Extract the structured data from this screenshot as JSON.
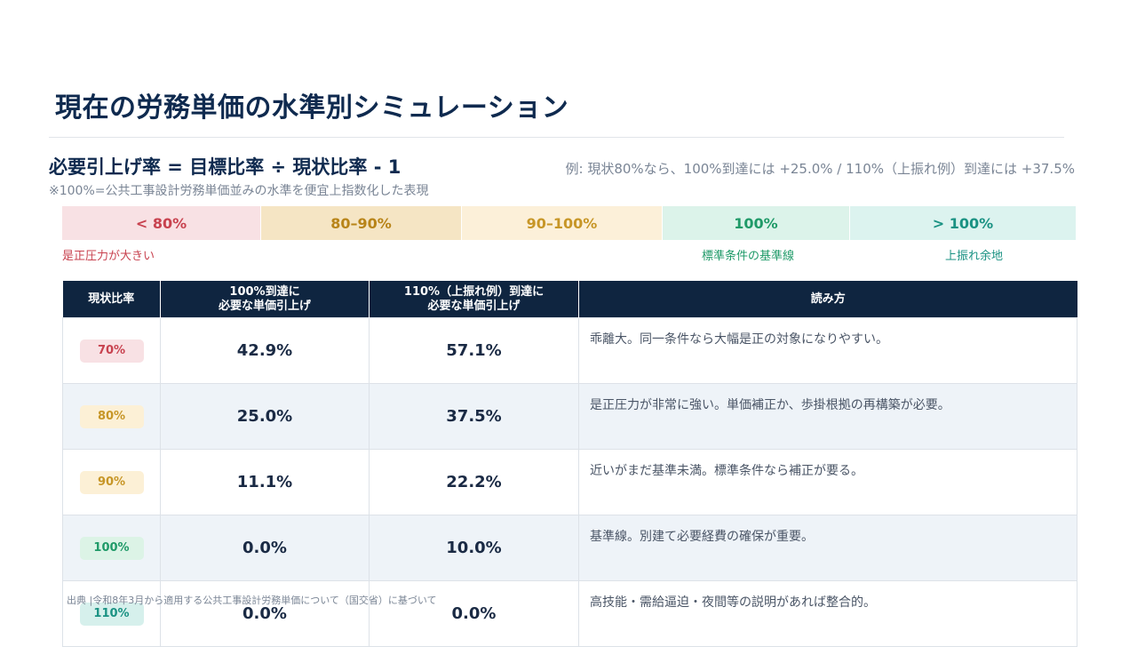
{
  "title": "現在の労務単価の水準別シミュレーション",
  "formula": "必要引上げ率 = 目標比率 ÷ 現状比率 - 1",
  "example": "例: 現状80%なら、100%到達には +25.0% / 110%（上振れ例）到達には +37.5%",
  "note": "※100%=公共工事設計労務単価並みの水準を便宜上指数化した表現",
  "scale": {
    "segments": [
      "< 80%",
      "80–90%",
      "90–100%",
      "100%",
      "> 100%"
    ],
    "labels": {
      "low": "是正圧力が大きい",
      "base": "標準条件の基準線",
      "high": "上振れ余地"
    }
  },
  "table": {
    "headers": {
      "current": "現状比率",
      "to100_line1": "100%到達に",
      "to100_line2": "必要な単価引上げ",
      "to110_line1": "110%（上振れ例）到達に",
      "to110_line2": "必要な単価引上げ",
      "reading": "読み方"
    },
    "rows": [
      {
        "ratio": "70%",
        "to100": "42.9%",
        "to110": "57.1%",
        "reading": "乖離大。同一条件なら大幅是正の対象になりやすい。"
      },
      {
        "ratio": "80%",
        "to100": "25.0%",
        "to110": "37.5%",
        "reading": "是正圧力が非常に強い。単価補正か、歩掛根拠の再構築が必要。"
      },
      {
        "ratio": "90%",
        "to100": "11.1%",
        "to110": "22.2%",
        "reading": "近いがまだ基準未満。標準条件なら補正が要る。"
      },
      {
        "ratio": "100%",
        "to100": "0.0%",
        "to110": "10.0%",
        "reading": "基準線。別建て必要経費の確保が重要。"
      },
      {
        "ratio": "110%",
        "to100": "0.0%",
        "to110": "0.0%",
        "reading": "高技能・需給逼迫・夜間等の説明があれば整合的。"
      }
    ]
  },
  "source": "出典 |令和8年3月から適用する公共工事設計労務単価について（国交省）に基づいて"
}
